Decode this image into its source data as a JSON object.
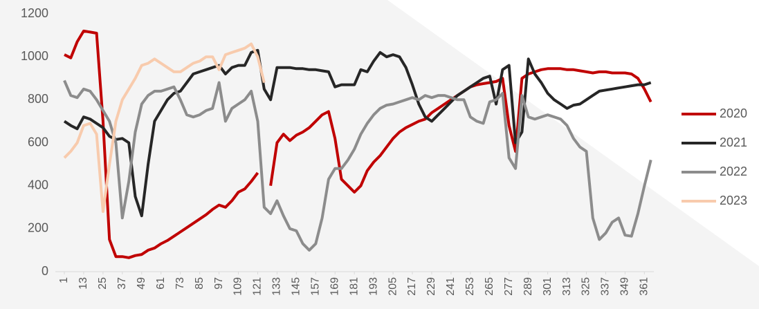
{
  "chart_data": {
    "type": "line",
    "x": [
      1,
      5,
      9,
      13,
      17,
      21,
      25,
      29,
      33,
      37,
      41,
      45,
      49,
      53,
      57,
      61,
      65,
      69,
      73,
      77,
      81,
      85,
      89,
      93,
      97,
      101,
      105,
      109,
      113,
      117,
      121,
      125,
      129,
      133,
      137,
      141,
      145,
      149,
      153,
      157,
      161,
      165,
      169,
      173,
      177,
      181,
      185,
      189,
      193,
      197,
      201,
      205,
      209,
      213,
      217,
      221,
      225,
      229,
      233,
      237,
      241,
      245,
      249,
      253,
      257,
      261,
      265,
      269,
      273,
      277,
      281,
      285,
      289,
      293,
      297,
      301,
      305,
      309,
      313,
      317,
      321,
      325,
      329,
      333,
      337,
      341,
      345,
      349,
      353,
      357,
      361,
      365
    ],
    "series": [
      {
        "name": "2020",
        "color": "#c00000",
        "values": [
          1010,
          995,
          1070,
          1120,
          1115,
          1110,
          700,
          150,
          70,
          70,
          65,
          75,
          80,
          100,
          110,
          130,
          145,
          165,
          185,
          205,
          225,
          245,
          265,
          290,
          310,
          300,
          330,
          370,
          385,
          420,
          460,
          null,
          400,
          600,
          640,
          610,
          635,
          650,
          670,
          700,
          730,
          745,
          620,
          430,
          400,
          370,
          400,
          470,
          510,
          540,
          580,
          620,
          650,
          670,
          685,
          700,
          710,
          740,
          760,
          780,
          800,
          820,
          840,
          860,
          870,
          875,
          880,
          885,
          900,
          680,
          560,
          900,
          920,
          930,
          940,
          945,
          945,
          945,
          940,
          940,
          935,
          930,
          925,
          930,
          930,
          925,
          925,
          925,
          920,
          900,
          850,
          790
        ]
      },
      {
        "name": "2021",
        "color": "#262626",
        "values": [
          700,
          680,
          665,
          720,
          710,
          690,
          670,
          630,
          615,
          620,
          600,
          350,
          260,
          500,
          700,
          750,
          800,
          830,
          840,
          880,
          920,
          930,
          940,
          950,
          960,
          920,
          950,
          960,
          960,
          1020,
          1030,
          850,
          800,
          950,
          950,
          950,
          945,
          945,
          940,
          940,
          935,
          930,
          860,
          870,
          870,
          870,
          940,
          930,
          980,
          1020,
          1000,
          1010,
          1000,
          950,
          870,
          780,
          720,
          700,
          730,
          760,
          790,
          820,
          840,
          860,
          880,
          900,
          910,
          780,
          940,
          960,
          600,
          650,
          990,
          920,
          880,
          830,
          800,
          780,
          760,
          775,
          780,
          800,
          820,
          840,
          845,
          850,
          855,
          860,
          865,
          870,
          870,
          880
        ]
      },
      {
        "name": "2022",
        "color": "#8c8c8c",
        "values": [
          890,
          820,
          810,
          850,
          840,
          800,
          750,
          700,
          600,
          250,
          420,
          650,
          780,
          820,
          840,
          840,
          850,
          860,
          800,
          730,
          720,
          730,
          750,
          760,
          880,
          700,
          760,
          780,
          800,
          840,
          700,
          300,
          270,
          330,
          260,
          200,
          190,
          130,
          100,
          130,
          250,
          430,
          480,
          480,
          520,
          570,
          640,
          690,
          730,
          760,
          775,
          780,
          790,
          800,
          810,
          800,
          820,
          810,
          820,
          820,
          810,
          800,
          800,
          720,
          700,
          690,
          790,
          800,
          830,
          530,
          480,
          820,
          720,
          710,
          720,
          730,
          720,
          710,
          680,
          620,
          580,
          560,
          250,
          150,
          180,
          230,
          250,
          170,
          165,
          270,
          400,
          520
        ]
      },
      {
        "name": "2023",
        "color": "#f8cbad",
        "values": [
          530,
          560,
          600,
          680,
          690,
          640,
          280,
          500,
          700,
          800,
          850,
          900,
          960,
          970,
          990,
          970,
          950,
          930,
          930,
          950,
          970,
          980,
          1000,
          1000,
          940,
          1010,
          1020,
          1030,
          1040,
          1060,
          1000,
          880,
          null,
          null,
          null,
          null,
          null,
          null,
          null,
          null,
          null,
          null,
          null,
          null,
          null,
          null,
          null,
          null,
          null,
          null,
          null,
          null,
          null,
          null,
          null,
          null,
          null,
          null,
          null,
          null,
          null,
          null,
          null,
          null,
          null,
          null,
          null,
          null,
          null,
          null,
          null,
          null,
          null,
          null,
          null,
          null,
          null,
          null,
          null,
          null,
          null,
          null,
          null,
          null,
          null,
          null,
          null,
          null,
          null,
          null,
          null,
          null
        ]
      }
    ],
    "xlim": [
      1,
      366
    ],
    "xticks": [
      1,
      13,
      25,
      37,
      49,
      61,
      73,
      85,
      97,
      109,
      121,
      133,
      145,
      157,
      169,
      181,
      193,
      205,
      217,
      229,
      241,
      253,
      265,
      277,
      289,
      301,
      313,
      325,
      337,
      349,
      361
    ],
    "ylim": [
      0,
      1200
    ],
    "yticks": [
      0,
      200,
      400,
      600,
      800,
      1000,
      1200
    ],
    "legend": "right"
  }
}
